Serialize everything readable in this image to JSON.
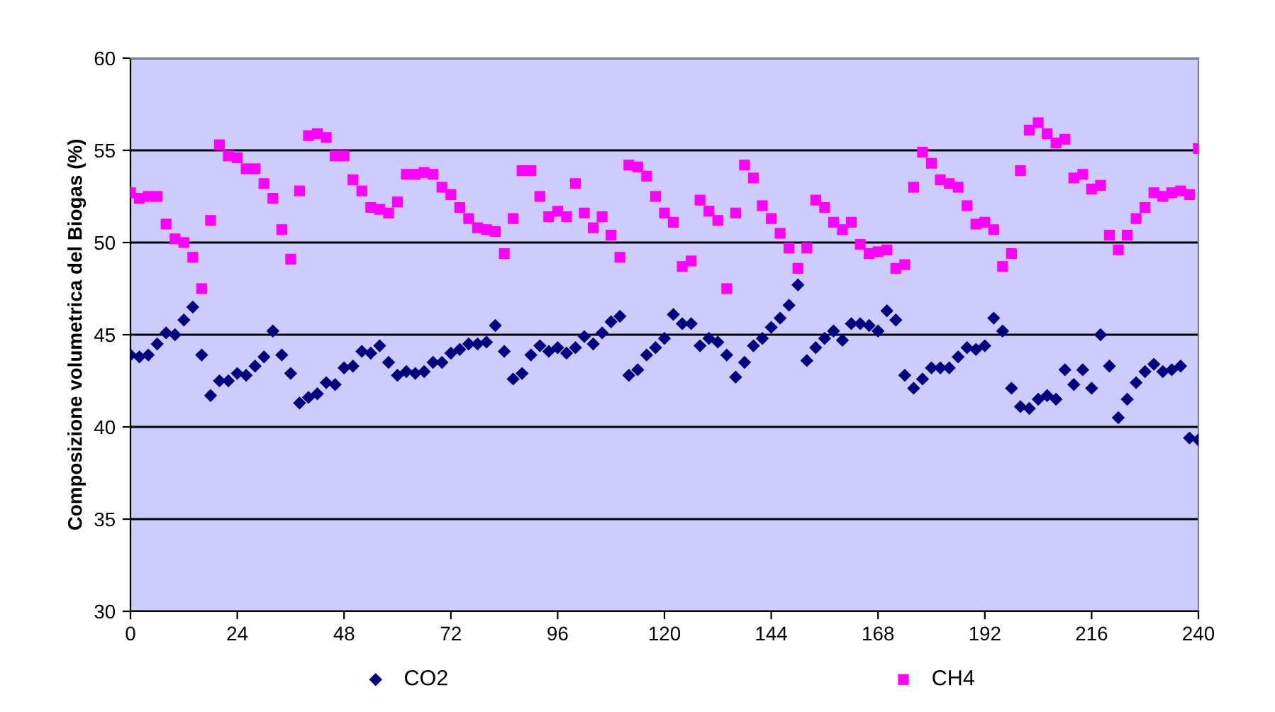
{
  "chart_data": {
    "type": "scatter",
    "ylabel": "Composizione volumetrica del Biogas (%)",
    "xlim": [
      0,
      240
    ],
    "xticks": [
      0,
      24,
      48,
      72,
      96,
      120,
      144,
      168,
      192,
      216,
      240
    ],
    "ylim": [
      30,
      60
    ],
    "yticks": [
      30,
      35,
      40,
      45,
      50,
      55,
      60
    ],
    "grid": "y",
    "legend": "bottom",
    "x": [
      0,
      2,
      4,
      6,
      8,
      10,
      12,
      14,
      16,
      18,
      20,
      22,
      24,
      26,
      28,
      30,
      32,
      34,
      36,
      38,
      40,
      42,
      44,
      46,
      48,
      50,
      52,
      54,
      56,
      58,
      60,
      62,
      64,
      66,
      68,
      70,
      72,
      74,
      76,
      78,
      80,
      82,
      84,
      86,
      88,
      90,
      92,
      94,
      96,
      98,
      100,
      102,
      104,
      106,
      108,
      110,
      112,
      114,
      116,
      118,
      120,
      122,
      124,
      126,
      128,
      130,
      132,
      134,
      136,
      138,
      140,
      142,
      144,
      146,
      148,
      150,
      152,
      154,
      156,
      158,
      160,
      162,
      164,
      166,
      168,
      170,
      172,
      174,
      176,
      178,
      180,
      182,
      184,
      186,
      188,
      190,
      192,
      194,
      196,
      198,
      200,
      202,
      204,
      206,
      208,
      210,
      212,
      214,
      216,
      218,
      220,
      222,
      224,
      226,
      228,
      230,
      232,
      234,
      236,
      238,
      240
    ],
    "series": [
      {
        "name": "CO2",
        "color": "#000080",
        "marker": "diamond",
        "values": [
          43.9,
          43.8,
          43.9,
          44.5,
          45.1,
          45.0,
          45.8,
          46.5,
          43.9,
          41.7,
          42.5,
          42.5,
          42.9,
          42.8,
          43.3,
          43.8,
          45.2,
          43.9,
          42.9,
          41.3,
          41.6,
          41.8,
          42.4,
          42.3,
          43.2,
          43.3,
          44.1,
          44.0,
          44.4,
          43.5,
          42.8,
          43.0,
          42.9,
          43.0,
          43.5,
          43.5,
          44.0,
          44.2,
          44.5,
          44.5,
          44.6,
          45.5,
          44.1,
          42.6,
          42.9,
          43.9,
          44.4,
          44.1,
          44.3,
          44.0,
          44.3,
          44.9,
          44.5,
          45.1,
          45.7,
          46.0,
          42.8,
          43.1,
          43.9,
          44.3,
          44.8,
          46.1,
          45.6,
          45.6,
          44.4,
          44.8,
          44.6,
          43.9,
          42.7,
          43.5,
          44.4,
          44.8,
          45.4,
          45.9,
          46.6,
          47.7,
          43.6,
          44.3,
          44.8,
          45.2,
          44.7,
          45.6,
          45.6,
          45.5,
          45.2,
          46.3,
          45.8,
          42.8,
          42.1,
          42.6,
          43.2,
          43.2,
          43.2,
          43.8,
          44.3,
          44.2,
          44.4,
          45.9,
          45.2,
          42.1,
          41.1,
          41.0,
          41.5,
          41.7,
          41.5,
          43.1,
          42.3,
          43.1,
          42.1,
          45.0,
          43.3,
          40.5,
          41.5,
          42.4,
          43.0,
          43.4,
          43.0,
          43.1,
          43.3,
          39.4,
          39.3
        ]
      },
      {
        "name": "CH4",
        "color": "#ff00ff",
        "marker": "square",
        "values": [
          52.7,
          52.4,
          52.5,
          52.5,
          51.0,
          50.2,
          50.0,
          49.2,
          47.5,
          51.2,
          55.3,
          54.7,
          54.6,
          54.0,
          54.0,
          53.2,
          52.4,
          50.7,
          49.1,
          52.8,
          55.8,
          55.9,
          55.7,
          54.7,
          54.7,
          53.4,
          52.8,
          51.9,
          51.8,
          51.6,
          52.2,
          53.7,
          53.7,
          53.8,
          53.7,
          53.0,
          52.6,
          51.9,
          51.3,
          50.8,
          50.7,
          50.6,
          49.4,
          51.3,
          53.9,
          53.9,
          52.5,
          51.4,
          51.7,
          51.4,
          53.2,
          51.6,
          50.8,
          51.4,
          50.4,
          49.2,
          54.2,
          54.1,
          53.6,
          52.5,
          51.6,
          51.1,
          48.7,
          49.0,
          52.3,
          51.7,
          51.2,
          47.5,
          51.6,
          54.2,
          53.5,
          52.0,
          51.3,
          50.5,
          49.7,
          48.6,
          49.7,
          52.3,
          51.9,
          51.1,
          50.7,
          51.1,
          49.9,
          49.4,
          49.5,
          49.6,
          48.6,
          48.8,
          53.0,
          54.9,
          54.3,
          53.4,
          53.2,
          53.0,
          52.0,
          51.0,
          51.1,
          50.7,
          48.7,
          49.4,
          53.9,
          56.1,
          56.5,
          55.9,
          55.4,
          55.6,
          53.5,
          53.7,
          52.9,
          53.1,
          50.4,
          49.6,
          50.4,
          51.3,
          51.9,
          52.7,
          52.5,
          52.7,
          52.8,
          52.6,
          55.1
        ]
      }
    ]
  }
}
